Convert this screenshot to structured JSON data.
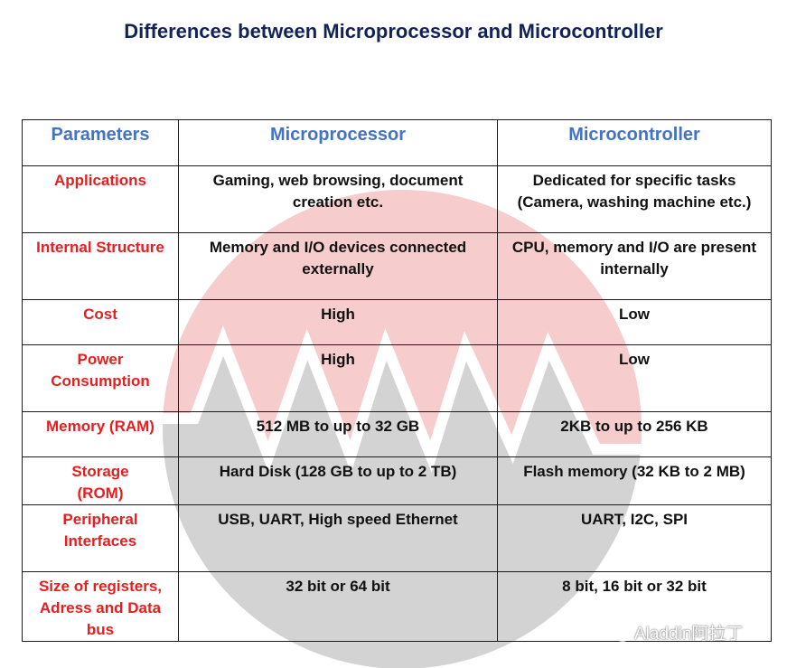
{
  "title": "Differences between Microprocessor and Microcontroller",
  "table": {
    "headers": [
      "Parameters",
      "Microprocessor",
      "Microcontroller"
    ],
    "rows": [
      {
        "param": "Applications",
        "mp": "Gaming, web browsing, document creation etc.",
        "mc": "Dedicated for specific tasks (Camera, washing machine etc.)"
      },
      {
        "param": "Internal Structure",
        "mp": "Memory and I/O devices connected externally",
        "mc": "CPU, memory and I/O are present internally"
      },
      {
        "param": "Cost",
        "mp": "High",
        "mc": "Low"
      },
      {
        "param": "Power Consumption",
        "mp": "High",
        "mc": "Low"
      },
      {
        "param": "Memory (RAM)",
        "mp": "512 MB to up to 32 GB",
        "mc": "2KB to up to 256 KB"
      },
      {
        "param": "Storage (ROM)",
        "mp": "Hard Disk (128 GB to up to 2 TB)",
        "mc": "Flash memory (32 KB to 2 MB)"
      },
      {
        "param": "Peripheral Interfaces",
        "mp": "USB, UART, High speed Ethernet",
        "mc": "UART, I2C, SPI"
      },
      {
        "param": "Size of registers, Adress and Data bus",
        "mp": "32 bit or 64 bit",
        "mc": "8 bit, 16 bit or 32 bit"
      }
    ]
  },
  "watermark": {
    "text": "Aladdin阿拉丁",
    "icon": "wechat-icon"
  },
  "colors": {
    "title": "#12235a",
    "header": "#4472c4",
    "param": "#e61e1e",
    "logo_red": "#f6c9c9",
    "logo_gray": "#d0d0d0"
  }
}
